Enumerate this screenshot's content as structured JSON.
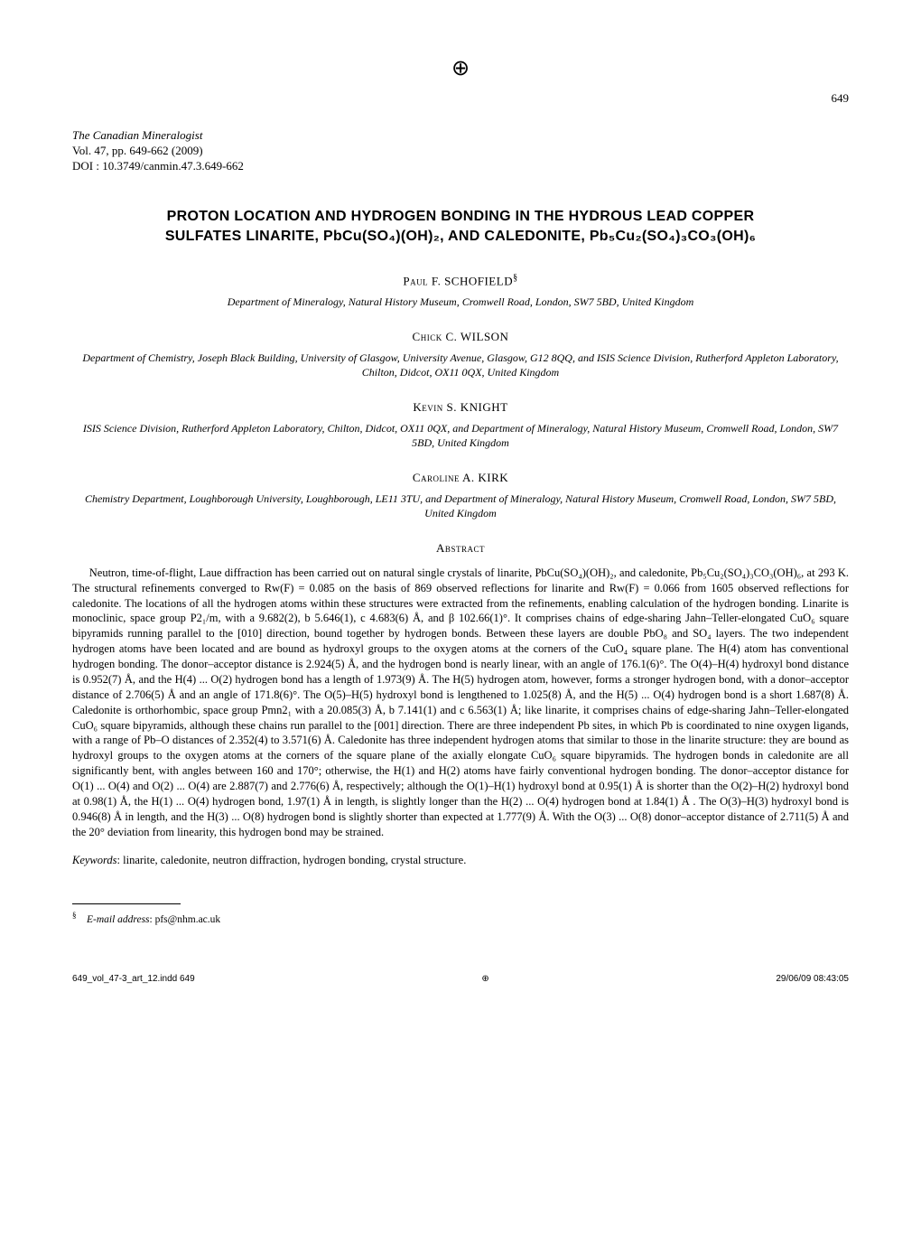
{
  "page_number_top": "649",
  "journal": {
    "name": "The Canadian Mineralogist",
    "vol_pages": "Vol. 47, pp. 649-662 (2009)",
    "doi": "DOI : 10.3749/canmin.47.3.649-662"
  },
  "title_line1": "PROTON LOCATION AND HYDROGEN BONDING IN THE HYDROUS LEAD COPPER",
  "title_line2": "SULFATES LINARITE, PbCu(SO₄)(OH)₂, AND CALEDONITE, Pb₅Cu₂(SO₄)₃CO₃(OH)₆",
  "authors": [
    {
      "name": "Paul F. SCHOFIELD",
      "sup": "§",
      "affiliation": "Department of Mineralogy, Natural History Museum, Cromwell Road, London, SW7 5BD, United Kingdom"
    },
    {
      "name": "Chick C. WILSON",
      "sup": "",
      "affiliation": "Department of Chemistry, Joseph Black Building, University of Glasgow, University Avenue, Glasgow, G12 8QQ, and ISIS Science Division, Rutherford Appleton Laboratory, Chilton, Didcot, OX11 0QX, United Kingdom"
    },
    {
      "name": "Kevin S. KNIGHT",
      "sup": "",
      "affiliation": "ISIS Science Division, Rutherford Appleton Laboratory, Chilton, Didcot, OX11 0QX, and Department of Mineralogy, Natural History Museum, Cromwell Road, London, SW7 5BD, United Kingdom"
    },
    {
      "name": "Caroline A. KIRK",
      "sup": "",
      "affiliation": "Chemistry Department, Loughborough University, Loughborough, LE11 3TU, and Department of Mineralogy, Natural History Museum, Cromwell Road, London, SW7 5BD, United Kingdom"
    }
  ],
  "abstract_heading": "Abstract",
  "abstract_text": "Neutron, time-of-flight, Laue diffraction has been carried out on natural single crystals of linarite, PbCu(SO₄)(OH)₂, and caledonite, Pb₅Cu₂(SO₄)₃CO₃(OH)₆, at 293 K. The structural refinements converged to Rw(F) = 0.085 on the basis of 869 observed reflections for linarite and Rw(F) = 0.066 from 1605 observed reflections for caledonite. The locations of all the hydrogen atoms within these structures were extracted from the refinements, enabling calculation of the hydrogen bonding. Linarite is monoclinic, space group P2₁/m, with a 9.682(2), b 5.646(1), c 4.683(6) Å, and β 102.66(1)°. It comprises chains of edge-sharing Jahn–Teller-elongated CuO₆ square bipyramids running parallel to the [010] direction, bound together by hydrogen bonds. Between these layers are double PbO₈ and SO₄ layers. The two independent hydrogen atoms have been located and are bound as hydroxyl groups to the oxygen atoms at the corners of the CuO₄ square plane. The H(4) atom has conventional hydrogen bonding. The donor–acceptor distance is 2.924(5) Å, and the hydrogen bond is nearly linear, with an angle of 176.1(6)°. The O(4)–H(4) hydroxyl bond distance is 0.952(7) Å, and the H(4) ... O(2) hydrogen bond has a length of 1.973(9) Å. The H(5) hydrogen atom, however, forms a stronger hydrogen bond, with a donor–acceptor distance of 2.706(5) Å and an angle of 171.8(6)°. The O(5)–H(5) hydroxyl bond is lengthened to 1.025(8) Å, and the H(5) ... O(4) hydrogen bond is a short 1.687(8) Å. Caledonite is orthorhombic, space group Pmn2₁ with a 20.085(3) Å, b 7.141(1) and c 6.563(1) Å; like linarite, it comprises chains of edge-sharing Jahn–Teller-elongated CuO₆ square bipyramids, although these chains run parallel to the [001] direction. There are three independent Pb sites, in which Pb is coordinated to nine oxygen ligands, with a range of Pb–O distances of 2.352(4) to 3.571(6) Å. Caledonite has three independent hydrogen atoms that similar to those in the linarite structure: they are bound as hydroxyl groups to the oxygen atoms at the corners of the square plane of the axially elongate CuO₆ square bipyramids. The hydrogen bonds in caledonite are all significantly bent, with angles between 160 and 170°; otherwise, the H(1) and H(2) atoms have fairly conventional hydrogen bonding. The donor–acceptor distance for O(1) ... O(4) and O(2) ... O(4) are 2.887(7) and 2.776(6) Å, respectively; although the O(1)–H(1) hydroxyl bond at 0.95(1) Å is shorter than the O(2)–H(2) hydroxyl bond at 0.98(1) Å, the H(1) ... O(4) hydrogen bond, 1.97(1) Å in length, is slightly longer than the H(2) ... O(4) hydrogen bond at 1.84(1) Å . The O(3)–H(3) hydroxyl bond is 0.946(8) Å in length, and the H(3) ... O(8) hydrogen bond is slightly shorter than expected at 1.777(9) Å. With the O(3) ... O(8) donor–acceptor distance of 2.711(5) Å and the 20° deviation from linearity, this hydrogen bond may be strained.",
  "keywords_label": "Keywords",
  "keywords_text": ": linarite, caledonite, neutron diffraction, hydrogen bonding, crystal structure.",
  "footnote_symbol": "§",
  "footnote_label": "E-mail address",
  "footnote_text": ": pfs@nhm.ac.uk",
  "footer": {
    "left": "649_vol_47-3_art_12.indd   649",
    "right": "29/06/09   08:43:05"
  }
}
